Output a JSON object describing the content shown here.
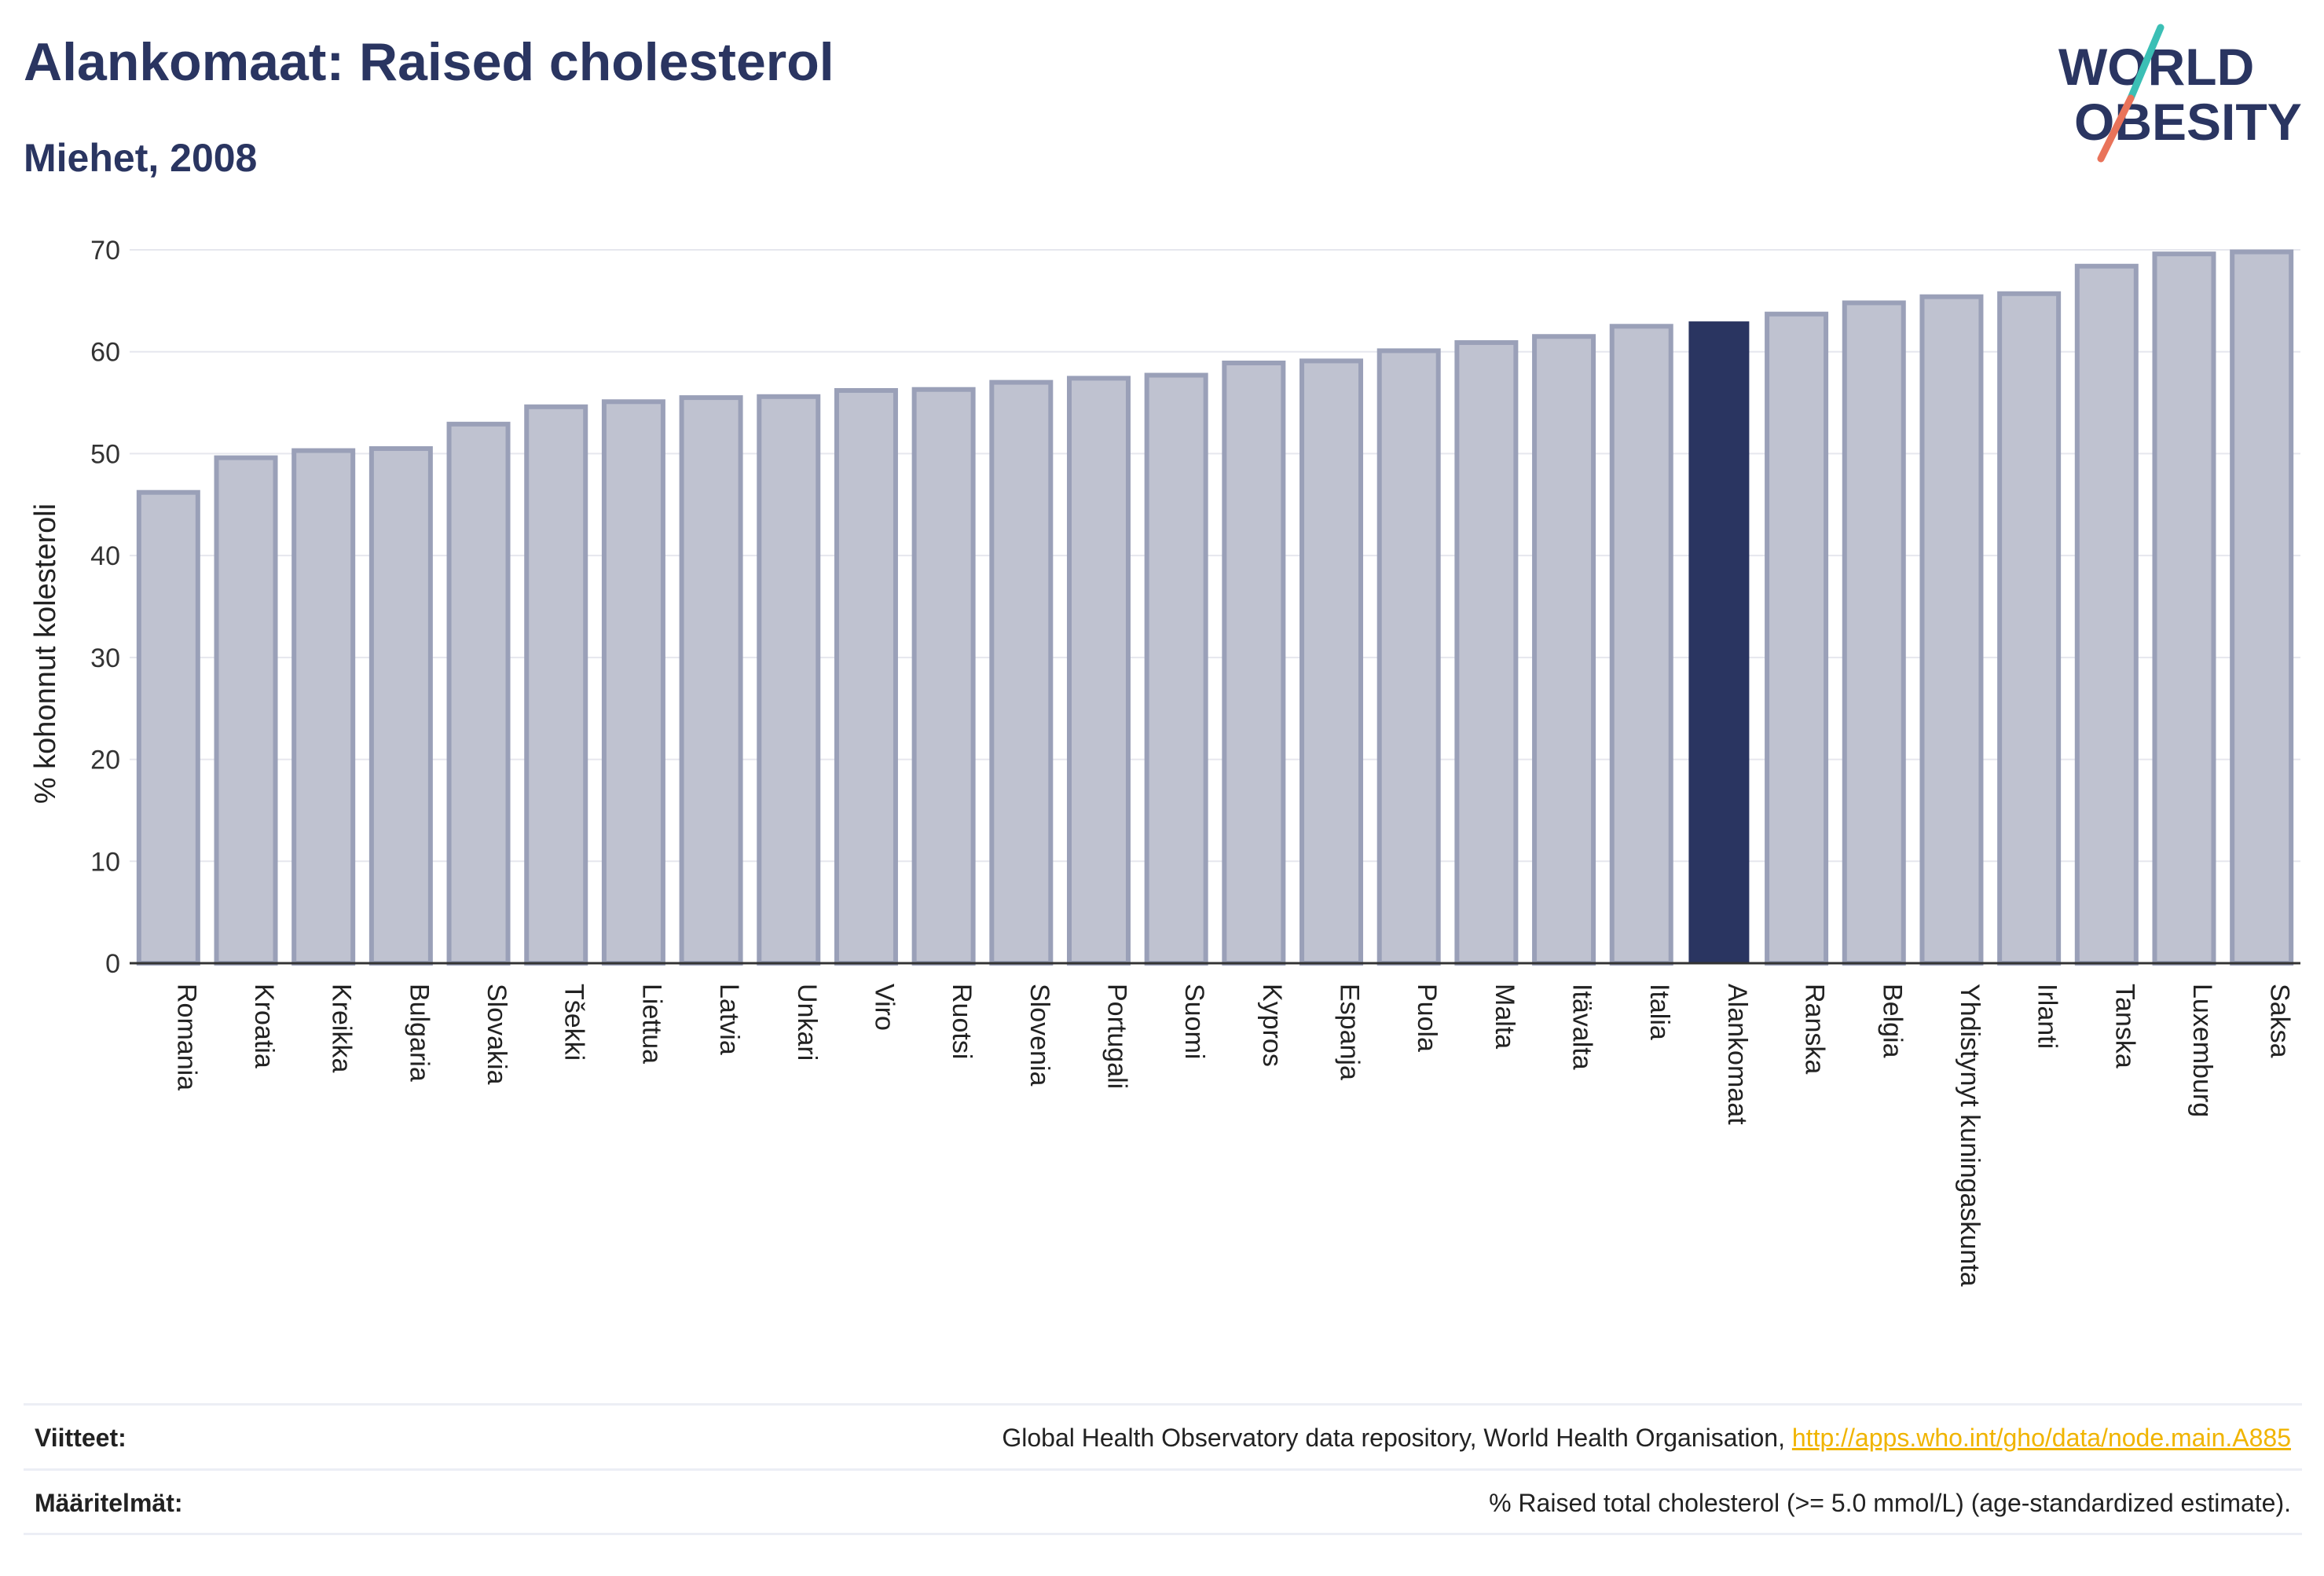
{
  "title": "Alankomaat: Raised cholesterol",
  "subtitle": "Miehet, 2008",
  "logo": {
    "line1": "WORLD",
    "line2": "OBESITY"
  },
  "colors": {
    "bar": "#bfc2d0",
    "bar_border": "#9aa0b8",
    "highlight": "#2a3561",
    "grid": "#e6e7ee",
    "axis": "#333333",
    "accent_teal": "#3bbfb5",
    "accent_coral": "#e9735a"
  },
  "chart_data": {
    "type": "bar",
    "title": "Alankomaat: Raised cholesterol",
    "subtitle": "Miehet, 2008",
    "ylabel": "% kohonnut kolesteroli",
    "xlabel": "",
    "ylim": [
      0,
      70
    ],
    "yticks": [
      0,
      10,
      20,
      30,
      40,
      50,
      60,
      70
    ],
    "grid": true,
    "highlight": "Alankomaat",
    "categories": [
      "Romania",
      "Kroatia",
      "Kreikka",
      "Bulgaria",
      "Slovakia",
      "Tšekki",
      "Liettua",
      "Latvia",
      "Unkari",
      "Viro",
      "Ruotsi",
      "Slovenia",
      "Portugali",
      "Suomi",
      "Kypros",
      "Espanja",
      "Puola",
      "Malta",
      "Itävalta",
      "Italia",
      "Alankomaat",
      "Ranska",
      "Belgia",
      "Yhdistynyt kuningaskunta",
      "Irlanti",
      "Tanska",
      "Luxemburg",
      "Saksa"
    ],
    "values": [
      46.2,
      49.6,
      50.3,
      50.5,
      52.9,
      54.6,
      55.1,
      55.5,
      55.6,
      56.2,
      56.3,
      57.0,
      57.4,
      57.7,
      58.9,
      59.1,
      60.1,
      60.9,
      61.5,
      62.5,
      62.9,
      63.7,
      64.8,
      65.4,
      65.7,
      68.4,
      69.6,
      69.8
    ]
  },
  "footer": {
    "sources_label": "Viitteet:",
    "sources_text": "Global Health Observatory data repository, World Health Organisation, ",
    "sources_link": "http://apps.who.int/gho/data/node.main.A885",
    "definitions_label": "Määritelmät:",
    "definitions_text": "% Raised total cholesterol (>= 5.0 mmol/L) (age-standardized estimate)."
  }
}
